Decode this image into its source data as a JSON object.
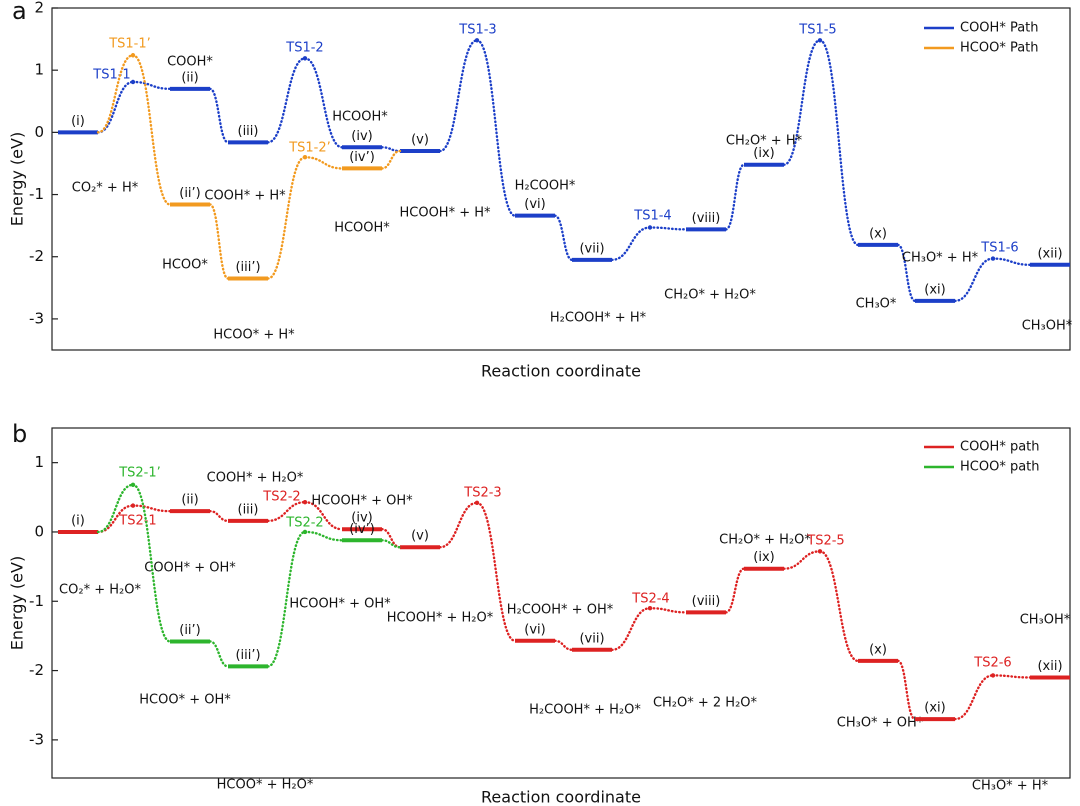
{
  "chart_data": [
    {
      "panel": "a",
      "type": "profile",
      "ylabel": "Energy (eV)",
      "xlabel": "Reaction coordinate",
      "ylim": [
        -3.5,
        2
      ],
      "yticks": [
        -3,
        -2,
        -1,
        0,
        1,
        2
      ],
      "legend": "upper right",
      "series": [
        {
          "name": "COOH* Path",
          "color": "#1c3fc8",
          "states": [
            "(i)",
            "(ii)",
            "(iii)",
            "(iv)",
            "(v)",
            "(vi)",
            "(vii)",
            "(viii)",
            "(ix)",
            "(x)",
            "(xi)",
            "(xii)"
          ],
          "values": [
            0,
            0.7,
            -0.16,
            -0.24,
            -0.3,
            -1.34,
            -2.05,
            -1.56,
            -0.52,
            -1.81,
            -2.71,
            -2.13
          ],
          "species": [
            "CO₂* + H*",
            "COOH*",
            "COOH* + H*",
            "HCOOH*",
            "HCOOH* + H*",
            "H₂COOH*",
            "H₂COOH* + H*",
            "CH₂O* + H₂O*",
            "CH₂O* + H*",
            "CH₃O*",
            "CH₃O* + H*",
            "CH₃OH*"
          ],
          "ts_labels": [
            "TS1-1",
            "TS1-2",
            "TS1-3",
            "TS1-4",
            "TS1-5",
            "TS1-6"
          ],
          "ts_values": [
            0.81,
            1.19,
            1.48,
            -1.53,
            1.48,
            -2.03
          ]
        },
        {
          "name": "HCOO* Path",
          "color": "#f29a1f",
          "states": [
            "(ii’)",
            "(iii’)",
            "(iv’)"
          ],
          "values": [
            -1.16,
            -2.35,
            -0.58
          ],
          "species": [
            "HCOO*",
            "HCOO* + H*",
            "HCOOH*"
          ],
          "ts_labels": [
            "TS1-1’",
            "TS1-2’"
          ],
          "ts_values": [
            1.24,
            -0.4
          ]
        }
      ]
    },
    {
      "panel": "b",
      "type": "profile",
      "ylabel": "Energy (eV)",
      "xlabel": "Reaction coordinate",
      "ylim": [
        -3.55,
        1.5
      ],
      "yticks": [
        -3,
        -2,
        -1,
        0,
        1
      ],
      "legend": "upper right",
      "series": [
        {
          "name": "COOH* path",
          "color": "#dd2222",
          "states": [
            "(i)",
            "(ii)",
            "(iii)",
            "(iv)",
            "(v)",
            "(vi)",
            "(vii)",
            "(viii)",
            "(ix)",
            "(x)",
            "(xi)",
            "(xii)"
          ],
          "values": [
            0,
            0.3,
            0.16,
            0.04,
            -0.22,
            -1.57,
            -1.7,
            -1.16,
            -0.53,
            -1.86,
            -2.7,
            -2.1
          ],
          "species": [
            "CO₂* + H₂O*",
            "COOH* + OH*",
            "COOH* + H₂O*",
            "HCOOH* + OH*",
            "HCOOH* + H₂O*",
            "H₂COOH* + OH*",
            "H₂COOH* + H₂O*",
            "CH₂O* + 2 H₂O*",
            "CH₂O* + H₂O*",
            "CH₃O* + OH*",
            "CH₃O* + H*",
            "CH₃OH*"
          ],
          "ts_labels": [
            "TS2-1",
            "TS2-2",
            "TS2-3",
            "TS2-4",
            "TS2-5",
            "TS2-6"
          ],
          "ts_values": [
            0.38,
            0.43,
            0.42,
            -1.1,
            -0.28,
            -2.07
          ]
        },
        {
          "name": "HCOO* path",
          "color": "#2db52d",
          "states": [
            "(ii’)",
            "(iii’)",
            "(iv’)"
          ],
          "values": [
            -1.58,
            -1.94,
            -0.12
          ],
          "species": [
            "HCOO* + OH*",
            "HCOO* + H₂O*",
            "HCOOH* + OH*"
          ],
          "ts_labels": [
            "TS2-1’",
            "TS2-2"
          ],
          "ts_values": [
            0.68,
            0
          ]
        }
      ]
    }
  ]
}
